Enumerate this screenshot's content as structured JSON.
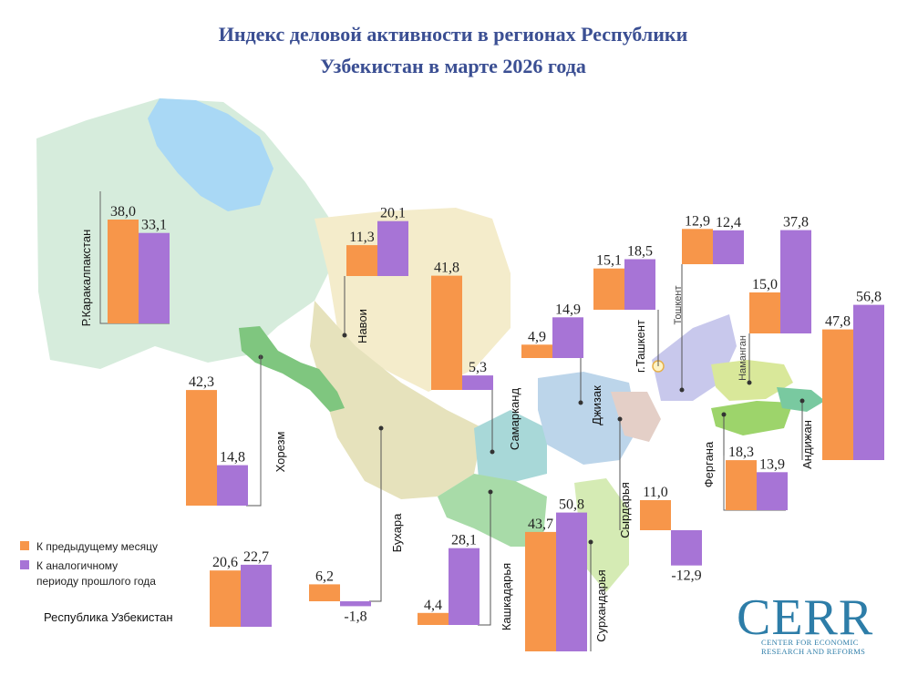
{
  "title_line1": "Индекс деловой активности в регионах Республики",
  "title_line2": "Узбекистан в марте 2026 года",
  "legend": {
    "month_label": "К предыдущему месяцу",
    "year_label_1": "К аналогичному",
    "year_label_2": "периоду прошлого года"
  },
  "colors": {
    "month": "#f7964a",
    "year": "#a774d6"
  },
  "logo": {
    "name": "CERR",
    "line1": "CENTER FOR ECONOMIC",
    "line2": "RESEARCH AND REFORMS"
  },
  "chart_data": {
    "type": "bar",
    "series": [
      {
        "name": "К предыдущему месяцу",
        "key": "month"
      },
      {
        "name": "К аналогичному периоду прошлого года",
        "key": "year"
      }
    ],
    "regions": [
      {
        "name": "Р.Каракалпакстан",
        "month": 38.0,
        "year": 33.1,
        "month_label": "38,0",
        "year_label": "33,1"
      },
      {
        "name": "Навои",
        "month": 11.3,
        "year": 20.1,
        "month_label": "11,3",
        "year_label": "20,1"
      },
      {
        "name": "Самарканд",
        "month": 41.8,
        "year": 5.3,
        "month_label": "41,8",
        "year_label": "5,3"
      },
      {
        "name": "Хорезм",
        "month": 42.3,
        "year": 14.8,
        "month_label": "42,3",
        "year_label": "14,8"
      },
      {
        "name": "Бухара",
        "month": 6.2,
        "year": -1.8,
        "month_label": "6,2",
        "year_label": "-1,8"
      },
      {
        "name": "Кашкадарья",
        "month": 4.4,
        "year": 28.1,
        "month_label": "4,4",
        "year_label": "28,1"
      },
      {
        "name": "Сурхандарья",
        "month": 43.7,
        "year": 50.8,
        "month_label": "43,7",
        "year_label": "50,8"
      },
      {
        "name": "Сырдарья",
        "month": 11.0,
        "year": -12.9,
        "month_label": "11,0",
        "year_label": "-12,9"
      },
      {
        "name": "Джизак",
        "month": 4.9,
        "year": 14.9,
        "month_label": "4,9",
        "year_label": "14,9"
      },
      {
        "name": "г.Ташкент",
        "month": 15.1,
        "year": 18.5,
        "month_label": "15,1",
        "year_label": "18,5"
      },
      {
        "name": "Тошкент",
        "month": 12.9,
        "year": 12.4,
        "month_label": "12,9",
        "year_label": "12,4"
      },
      {
        "name": "Наманган",
        "month": 15.0,
        "year": 37.8,
        "month_label": "15,0",
        "year_label": "37,8"
      },
      {
        "name": "Андижан",
        "month": 47.8,
        "year": 56.8,
        "month_label": "47,8",
        "year_label": "56,8"
      },
      {
        "name": "Фергана",
        "month": 18.3,
        "year": 13.9,
        "month_label": "18,3",
        "year_label": "13,9"
      },
      {
        "name": "Республика Узбекистан",
        "month": 20.6,
        "year": 22.7,
        "month_label": "20,6",
        "year_label": "22,7"
      }
    ]
  }
}
